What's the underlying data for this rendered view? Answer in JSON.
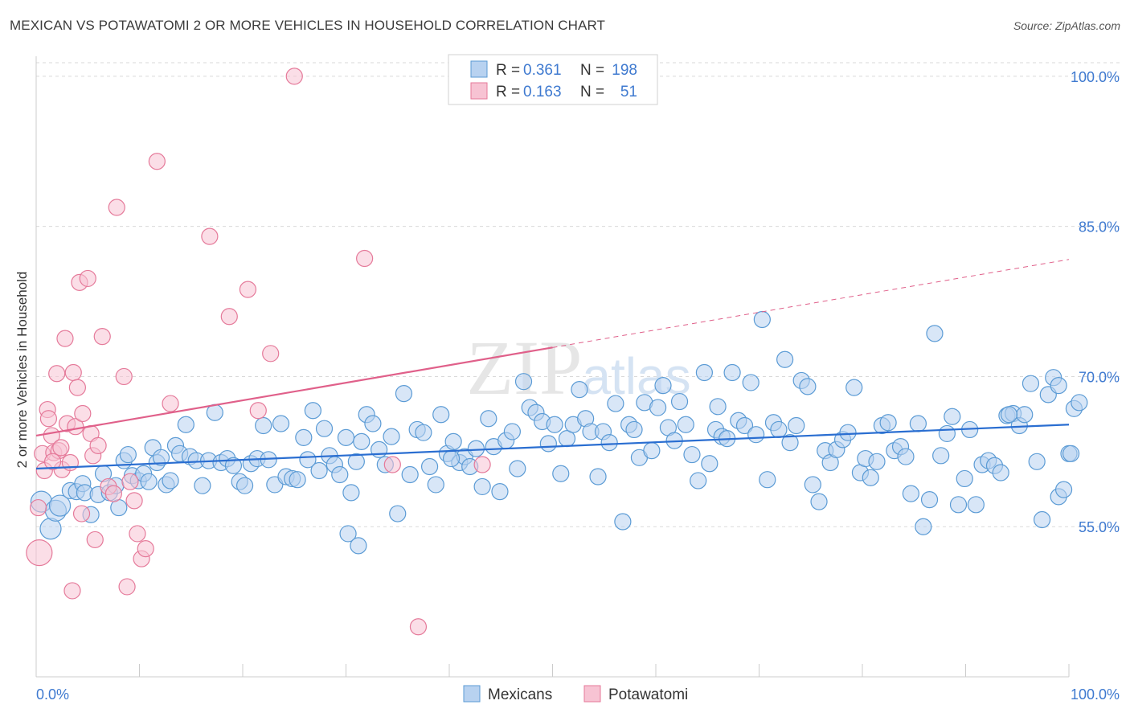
{
  "title": "MEXICAN VS POTAWATOMI 2 OR MORE VEHICLES IN HOUSEHOLD CORRELATION CHART",
  "source": "Source: ZipAtlas.com",
  "watermark": "ZIPatlas",
  "colors": {
    "blue": "#5b9bd5",
    "blue_fill": "#b8d2f0",
    "blue_line": "#2a6ed1",
    "pink": "#e57a9a",
    "pink_fill": "#f7c3d3",
    "pink_line": "#e0608a",
    "tick_label": "#3f7ad0",
    "grid": "#d9d9d9"
  },
  "legend": {
    "rows": [
      {
        "r_label": "R =",
        "r_value": "0.361",
        "n_label": "N =",
        "n_value": "198"
      },
      {
        "r_label": "R =",
        "r_value": "0.163",
        "n_label": "N =",
        "n_value": "51"
      }
    ]
  },
  "chart_data": {
    "type": "scatter",
    "title": "MEXICAN VS POTAWATOMI 2 OR MORE VEHICLES IN HOUSEHOLD CORRELATION CHART",
    "xlabel": "",
    "ylabel": "2 or more Vehicles in Household",
    "xlim": [
      0,
      100
    ],
    "ylim": [
      40,
      102
    ],
    "x_tick_labels": [
      "0.0%",
      "100.0%"
    ],
    "y_ticks": [
      55,
      70,
      85,
      100
    ],
    "y_tick_labels": [
      "55.0%",
      "70.0%",
      "85.0%",
      "100.0%"
    ],
    "grid": true,
    "legend_position": "top-center",
    "series": [
      {
        "name": "Mexicans",
        "r": 0.361,
        "n": 198,
        "trend": {
          "x0": 0,
          "y0": 60.8,
          "x1": 100,
          "y1": 65.2
        },
        "points": [
          [
            0.5,
            57.5
          ],
          [
            1.4,
            54.8
          ],
          [
            1.9,
            56.6
          ],
          [
            2.3,
            57.1
          ],
          [
            3.3,
            58.6
          ],
          [
            3.9,
            58.5
          ],
          [
            4.5,
            59.3
          ],
          [
            4.7,
            58.4
          ],
          [
            5.3,
            56.2
          ],
          [
            6.0,
            58.2
          ],
          [
            6.5,
            60.3
          ],
          [
            7.1,
            58.4
          ],
          [
            7.7,
            59.1
          ],
          [
            8.0,
            56.9
          ],
          [
            8.5,
            61.6
          ],
          [
            8.9,
            62.2
          ],
          [
            9.3,
            60.1
          ],
          [
            9.9,
            59.6
          ],
          [
            10.4,
            60.3
          ],
          [
            10.9,
            59.5
          ],
          [
            11.3,
            62.9
          ],
          [
            11.7,
            61.4
          ],
          [
            12.1,
            61.9
          ],
          [
            12.6,
            59.2
          ],
          [
            13.0,
            59.6
          ],
          [
            13.5,
            63.1
          ],
          [
            13.9,
            62.3
          ],
          [
            14.5,
            65.2
          ],
          [
            14.9,
            62.0
          ],
          [
            15.5,
            61.6
          ],
          [
            16.1,
            59.1
          ],
          [
            16.7,
            61.6
          ],
          [
            17.3,
            66.4
          ],
          [
            17.9,
            61.4
          ],
          [
            18.5,
            61.8
          ],
          [
            19.1,
            61.1
          ],
          [
            19.7,
            59.5
          ],
          [
            20.2,
            59.1
          ],
          [
            20.8,
            61.3
          ],
          [
            21.4,
            61.8
          ],
          [
            22.0,
            65.1
          ],
          [
            22.5,
            61.7
          ],
          [
            23.1,
            59.2
          ],
          [
            23.7,
            65.3
          ],
          [
            24.2,
            60.0
          ],
          [
            24.8,
            59.8
          ],
          [
            25.3,
            59.7
          ],
          [
            25.9,
            63.9
          ],
          [
            26.3,
            61.7
          ],
          [
            26.8,
            66.6
          ],
          [
            27.4,
            60.6
          ],
          [
            27.9,
            64.8
          ],
          [
            28.4,
            62.1
          ],
          [
            28.9,
            61.2
          ],
          [
            29.4,
            60.2
          ],
          [
            30.0,
            63.9
          ],
          [
            30.5,
            58.4
          ],
          [
            31.0,
            61.5
          ],
          [
            31.5,
            63.5
          ],
          [
            32.0,
            66.2
          ],
          [
            32.6,
            65.3
          ],
          [
            33.2,
            62.7
          ],
          [
            33.8,
            61.2
          ],
          [
            34.4,
            64.0
          ],
          [
            35.0,
            56.3
          ],
          [
            35.6,
            68.3
          ],
          [
            36.2,
            60.2
          ],
          [
            36.9,
            64.7
          ],
          [
            37.5,
            64.4
          ],
          [
            38.1,
            61.0
          ],
          [
            38.7,
            59.2
          ],
          [
            39.2,
            66.2
          ],
          [
            39.8,
            62.3
          ],
          [
            40.4,
            63.5
          ],
          [
            41.0,
            61.4
          ],
          [
            41.5,
            62.0
          ],
          [
            42.0,
            61.0
          ],
          [
            42.6,
            62.8
          ],
          [
            43.2,
            59.0
          ],
          [
            43.8,
            65.8
          ],
          [
            44.3,
            63.0
          ],
          [
            44.9,
            58.5
          ],
          [
            45.5,
            63.6
          ],
          [
            46.1,
            64.5
          ],
          [
            46.6,
            60.8
          ],
          [
            47.2,
            69.5
          ],
          [
            47.8,
            66.9
          ],
          [
            48.4,
            66.4
          ],
          [
            49.0,
            65.5
          ],
          [
            49.6,
            63.3
          ],
          [
            50.2,
            65.2
          ],
          [
            50.8,
            60.3
          ],
          [
            51.4,
            63.8
          ],
          [
            52.0,
            65.2
          ],
          [
            52.6,
            68.7
          ],
          [
            53.2,
            65.8
          ],
          [
            53.7,
            64.5
          ],
          [
            54.4,
            60.0
          ],
          [
            54.9,
            64.5
          ],
          [
            55.5,
            63.4
          ],
          [
            56.1,
            67.3
          ],
          [
            56.8,
            55.5
          ],
          [
            57.4,
            65.2
          ],
          [
            57.9,
            64.7
          ],
          [
            58.4,
            61.9
          ],
          [
            58.9,
            67.4
          ],
          [
            59.6,
            62.6
          ],
          [
            60.2,
            66.9
          ],
          [
            60.7,
            69.1
          ],
          [
            61.2,
            64.9
          ],
          [
            61.8,
            63.6
          ],
          [
            62.3,
            67.5
          ],
          [
            62.9,
            65.2
          ],
          [
            63.5,
            62.2
          ],
          [
            64.1,
            59.6
          ],
          [
            64.7,
            70.4
          ],
          [
            65.2,
            61.3
          ],
          [
            65.8,
            64.7
          ],
          [
            66.4,
            64.0
          ],
          [
            66.9,
            63.8
          ],
          [
            67.4,
            70.4
          ],
          [
            68.0,
            65.6
          ],
          [
            68.6,
            65.1
          ],
          [
            69.2,
            69.4
          ],
          [
            69.7,
            64.2
          ],
          [
            70.3,
            75.7
          ],
          [
            70.8,
            59.7
          ],
          [
            71.4,
            65.4
          ],
          [
            71.9,
            64.7
          ],
          [
            72.5,
            71.7
          ],
          [
            73.0,
            63.4
          ],
          [
            73.6,
            65.1
          ],
          [
            74.1,
            69.6
          ],
          [
            74.7,
            69.0
          ],
          [
            75.2,
            59.2
          ],
          [
            75.8,
            57.5
          ],
          [
            76.4,
            62.6
          ],
          [
            76.9,
            61.4
          ],
          [
            77.5,
            62.7
          ],
          [
            78.1,
            63.7
          ],
          [
            78.6,
            64.4
          ],
          [
            79.2,
            68.9
          ],
          [
            79.8,
            60.4
          ],
          [
            80.3,
            61.8
          ],
          [
            80.8,
            59.9
          ],
          [
            81.4,
            61.5
          ],
          [
            81.9,
            65.1
          ],
          [
            82.5,
            65.4
          ],
          [
            83.1,
            62.6
          ],
          [
            83.7,
            63.0
          ],
          [
            84.2,
            62.0
          ],
          [
            84.7,
            58.3
          ],
          [
            85.4,
            65.3
          ],
          [
            85.9,
            55.0
          ],
          [
            86.5,
            57.7
          ],
          [
            87.0,
            74.3
          ],
          [
            87.6,
            62.1
          ],
          [
            88.2,
            64.3
          ],
          [
            88.7,
            66.0
          ],
          [
            89.3,
            57.2
          ],
          [
            89.9,
            59.8
          ],
          [
            90.4,
            64.7
          ],
          [
            91.0,
            57.2
          ],
          [
            91.6,
            61.2
          ],
          [
            92.2,
            61.6
          ],
          [
            92.8,
            61.1
          ],
          [
            93.4,
            60.4
          ],
          [
            94.0,
            66.1
          ],
          [
            94.6,
            66.3
          ],
          [
            95.2,
            65.1
          ],
          [
            95.7,
            66.2
          ],
          [
            96.3,
            69.3
          ],
          [
            96.9,
            61.5
          ],
          [
            97.4,
            55.7
          ],
          [
            98.0,
            68.2
          ],
          [
            98.5,
            69.9
          ],
          [
            99.0,
            58.0
          ],
          [
            99.5,
            58.7
          ],
          [
            100.0,
            62.3
          ],
          [
            100.5,
            66.8
          ],
          [
            101.0,
            67.4
          ],
          [
            100.2,
            62.3
          ],
          [
            99.0,
            69.1
          ],
          [
            94.2,
            66.2
          ],
          [
            66.0,
            67.0
          ],
          [
            40.2,
            61.8
          ],
          [
            30.2,
            54.3
          ],
          [
            31.2,
            53.1
          ]
        ]
      },
      {
        "name": "Potawatomi",
        "r": 0.163,
        "n": 51,
        "trend": {
          "x0": 0,
          "y0": 64.1,
          "x1": 50,
          "y1": 72.9
        },
        "trend_dashed": {
          "x0": 50,
          "y0": 72.9,
          "x1": 100,
          "y1": 81.7
        },
        "points": [
          [
            0.3,
            52.4
          ],
          [
            0.6,
            62.3
          ],
          [
            0.8,
            60.6
          ],
          [
            1.1,
            66.7
          ],
          [
            1.2,
            65.8
          ],
          [
            1.5,
            64.1
          ],
          [
            1.7,
            62.4
          ],
          [
            2.0,
            70.3
          ],
          [
            2.2,
            62.6
          ],
          [
            2.4,
            62.9
          ],
          [
            2.5,
            60.7
          ],
          [
            2.8,
            73.8
          ],
          [
            3.0,
            65.3
          ],
          [
            3.3,
            61.4
          ],
          [
            3.6,
            70.4
          ],
          [
            3.8,
            65.0
          ],
          [
            4.0,
            68.9
          ],
          [
            4.2,
            79.4
          ],
          [
            4.4,
            56.3
          ],
          [
            4.5,
            66.3
          ],
          [
            5.0,
            79.8
          ],
          [
            5.3,
            64.3
          ],
          [
            5.5,
            62.1
          ],
          [
            5.7,
            53.7
          ],
          [
            6.0,
            63.1
          ],
          [
            6.4,
            74.0
          ],
          [
            7.0,
            59.0
          ],
          [
            7.5,
            58.3
          ],
          [
            7.8,
            86.9
          ],
          [
            8.5,
            70.0
          ],
          [
            8.8,
            49.0
          ],
          [
            9.1,
            59.5
          ],
          [
            9.5,
            57.6
          ],
          [
            9.8,
            54.3
          ],
          [
            10.2,
            51.8
          ],
          [
            10.6,
            52.8
          ],
          [
            11.7,
            91.5
          ],
          [
            13.0,
            67.3
          ],
          [
            16.8,
            84.0
          ],
          [
            18.7,
            76.0
          ],
          [
            20.5,
            78.7
          ],
          [
            21.5,
            66.6
          ],
          [
            22.7,
            72.3
          ],
          [
            25.0,
            100.0
          ],
          [
            31.8,
            81.8
          ],
          [
            34.5,
            61.2
          ],
          [
            37.0,
            45.0
          ],
          [
            43.2,
            61.2
          ],
          [
            3.5,
            48.6
          ],
          [
            0.2,
            56.9
          ],
          [
            1.6,
            61.5
          ]
        ]
      }
    ]
  }
}
